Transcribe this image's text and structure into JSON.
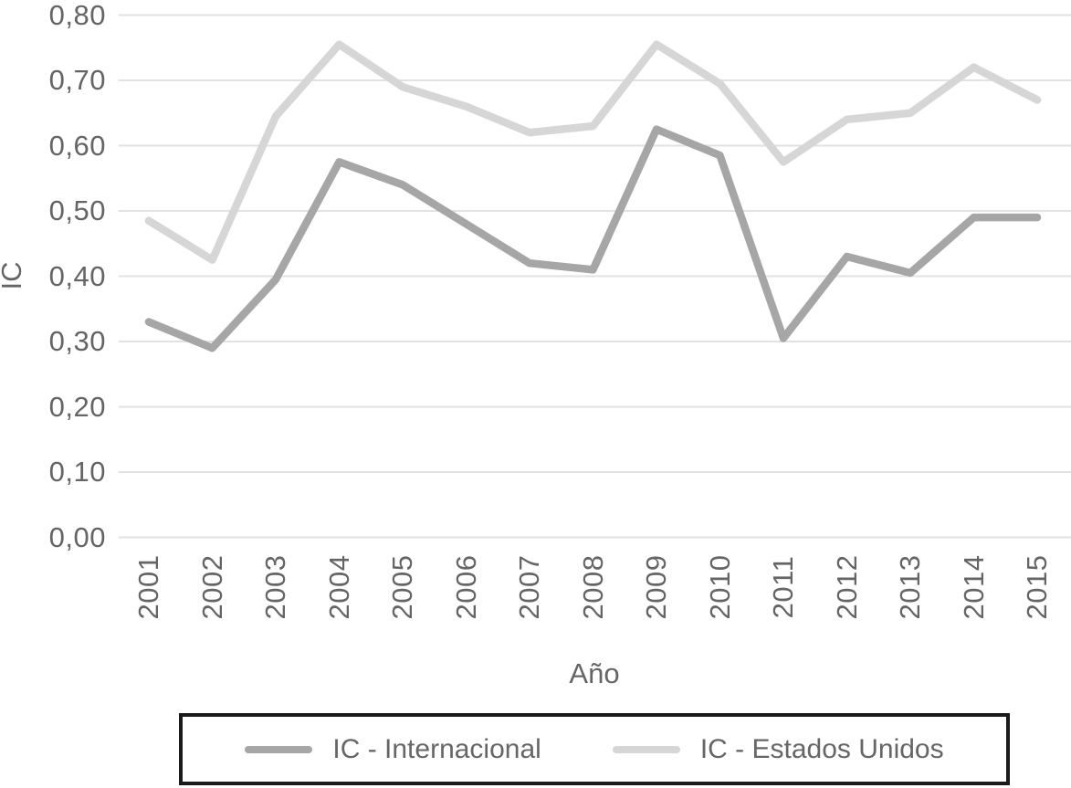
{
  "chart_data": {
    "type": "line",
    "xlabel": "Año",
    "ylabel": "IC",
    "x": [
      "2001",
      "2002",
      "2003",
      "2004",
      "2005",
      "2006",
      "2007",
      "2008",
      "2009",
      "2010",
      "2011",
      "2012",
      "2013",
      "2014",
      "2015"
    ],
    "series": [
      {
        "name": "IC - Internacional",
        "color": "#a6a6a6",
        "values": [
          0.33,
          0.29,
          0.395,
          0.575,
          0.54,
          0.48,
          0.42,
          0.41,
          0.625,
          0.585,
          0.305,
          0.43,
          0.405,
          0.49,
          0.49
        ]
      },
      {
        "name": "IC - Estados Unidos",
        "color": "#d6d6d6",
        "values": [
          0.485,
          0.425,
          0.645,
          0.755,
          0.69,
          0.66,
          0.62,
          0.63,
          0.755,
          0.695,
          0.575,
          0.64,
          0.65,
          0.72,
          0.67
        ]
      }
    ],
    "ylim": [
      0,
      0.8
    ],
    "y_tick_labels": [
      "0,00",
      "0,10",
      "0,20",
      "0,30",
      "0,40",
      "0,50",
      "0,60",
      "0,70",
      "0,80"
    ],
    "y_tick_values": [
      0,
      0.1,
      0.2,
      0.3,
      0.4,
      0.5,
      0.6,
      0.7,
      0.8
    ],
    "decimal_separator": ",",
    "grid": true,
    "legend_position": "bottom",
    "colors": {
      "background": "#ffffff",
      "text": "#656565",
      "gridline": "#e2e2e2",
      "legend_border": "#1a1a1a"
    }
  }
}
